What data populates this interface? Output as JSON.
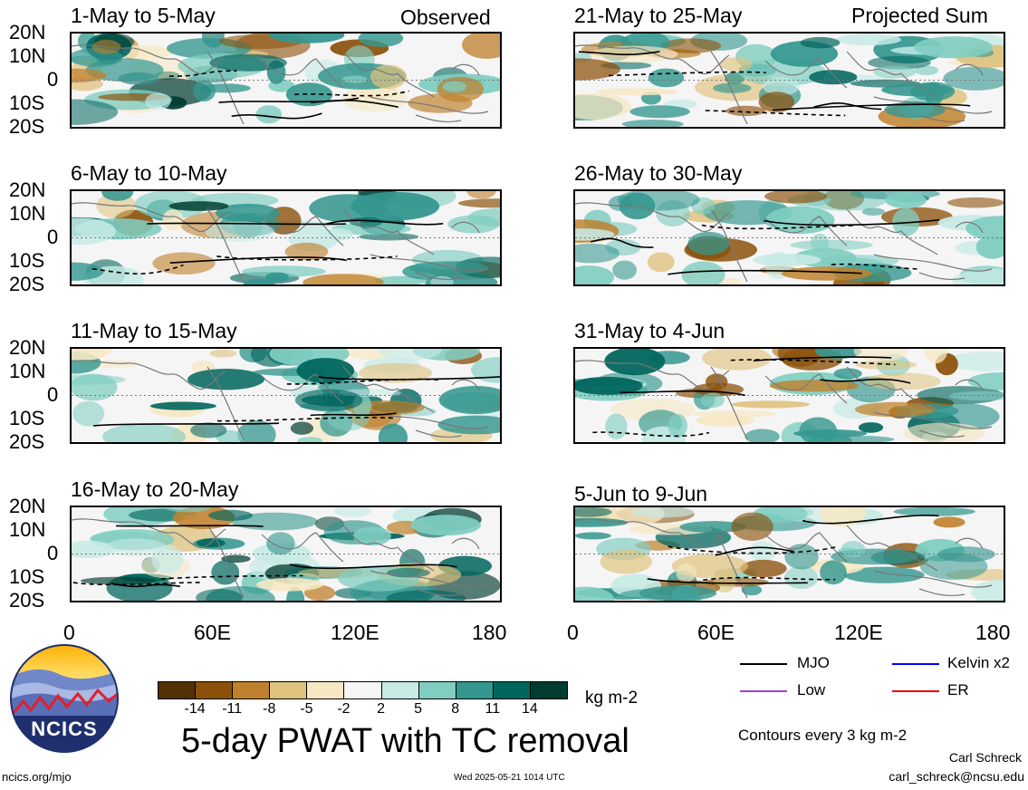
{
  "header": {
    "left_column_label": "Observed",
    "right_column_label": "Projected Sum"
  },
  "panels": [
    {
      "id": "p1",
      "title": "1-May to 5-May"
    },
    {
      "id": "p2",
      "title": "6-May to 10-May"
    },
    {
      "id": "p3",
      "title": "11-May to 15-May"
    },
    {
      "id": "p4",
      "title": "16-May to 20-May"
    },
    {
      "id": "p5",
      "title": "21-May to 25-May"
    },
    {
      "id": "p6",
      "title": "26-May to 30-May"
    },
    {
      "id": "p7",
      "title": "31-May to 4-Jun"
    },
    {
      "id": "p8",
      "title": "5-Jun to 9-Jun"
    }
  ],
  "axes": {
    "lat_labels": [
      "20N",
      "10N",
      "0",
      "10S",
      "20S"
    ],
    "lon_labels": [
      "0",
      "60E",
      "120E",
      "180"
    ]
  },
  "colorbar": {
    "colors": [
      "#543005",
      "#8c510a",
      "#bf812d",
      "#dfc27d",
      "#f6e8c3",
      "#f5f5f5",
      "#c7eae5",
      "#80cdc1",
      "#35978f",
      "#01665e",
      "#003c30"
    ],
    "ticks": [
      "-14",
      "-11",
      "-8",
      "-5",
      "-2",
      "2",
      "5",
      "8",
      "11",
      "14"
    ],
    "unit": "kg m-2"
  },
  "legend": {
    "items": [
      {
        "label": "MJO",
        "color": "#000000"
      },
      {
        "label": "Kelvin x2",
        "color": "#0000ff"
      },
      {
        "label": "Low",
        "color": "#a040e0"
      },
      {
        "label": "ER",
        "color": "#e00000"
      }
    ],
    "contour_note": "Contours every 3 kg m-2"
  },
  "footer": {
    "main_title": "5-day PWAT with TC removal",
    "logo_text": "NCICS",
    "url": "ncics.org/mjo",
    "timestamp": "Wed 2025-05-21 1014 UTC",
    "author": "Carl Schreck",
    "email": "carl_schreck@ncsu.edu"
  }
}
